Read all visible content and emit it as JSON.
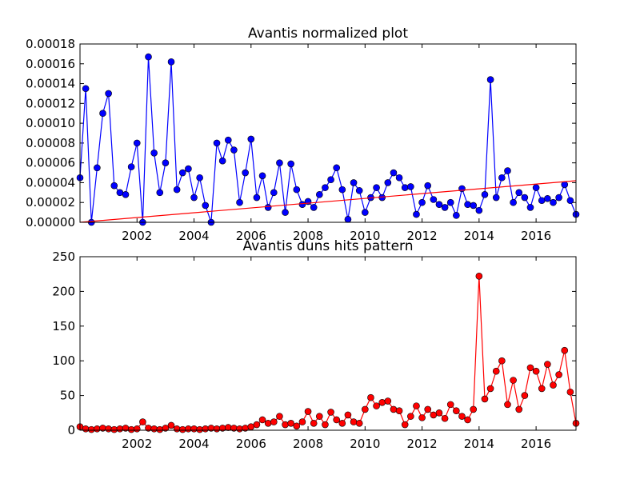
{
  "chart_data": [
    {
      "type": "line",
      "title": "Avantis normalized plot",
      "x": [
        2000,
        2000.2,
        2000.4,
        2000.6,
        2000.8,
        2001,
        2001.2,
        2001.4,
        2001.6,
        2001.8,
        2002,
        2002.2,
        2002.4,
        2002.6,
        2002.8,
        2003,
        2003.2,
        2003.4,
        2003.6,
        2003.8,
        2004,
        2004.2,
        2004.4,
        2004.6,
        2004.8,
        2005,
        2005.2,
        2005.4,
        2005.6,
        2005.8,
        2006,
        2006.2,
        2006.4,
        2006.6,
        2006.8,
        2007,
        2007.2,
        2007.4,
        2007.6,
        2007.8,
        2008,
        2008.2,
        2008.4,
        2008.6,
        2008.8,
        2009,
        2009.2,
        2009.4,
        2009.6,
        2009.8,
        2010,
        2010.2,
        2010.4,
        2010.6,
        2010.8,
        2011,
        2011.2,
        2011.4,
        2011.6,
        2011.8,
        2012,
        2012.2,
        2012.4,
        2012.6,
        2012.8,
        2013,
        2013.2,
        2013.4,
        2013.6,
        2013.8,
        2014,
        2014.2,
        2014.4,
        2014.6,
        2014.8,
        2015,
        2015.2,
        2015.4,
        2015.6,
        2015.8,
        2016,
        2016.2,
        2016.4,
        2016.6,
        2016.8,
        2017,
        2017.2,
        2017.4
      ],
      "series": [
        {
          "color": "#0000ff",
          "values": [
            4.5e-05,
            0.000135,
            0,
            5.5e-05,
            0.00011,
            0.00013,
            3.7e-05,
            3e-05,
            2.8e-05,
            5.6e-05,
            8e-05,
            0,
            0.000167,
            7e-05,
            3e-05,
            6e-05,
            0.000162,
            3.3e-05,
            5e-05,
            5.4e-05,
            2.5e-05,
            4.5e-05,
            1.7e-05,
            0,
            8e-05,
            6.2e-05,
            8.3e-05,
            7.3e-05,
            2e-05,
            5e-05,
            8.4e-05,
            2.5e-05,
            4.7e-05,
            1.5e-05,
            3e-05,
            6e-05,
            1e-05,
            5.9e-05,
            3.3e-05,
            1.8e-05,
            2.1e-05,
            1.5e-05,
            2.8e-05,
            3.5e-05,
            4.3e-05,
            5.5e-05,
            3.3e-05,
            3e-06,
            4e-05,
            3.2e-05,
            1e-05,
            2.5e-05,
            3.5e-05,
            2.5e-05,
            4e-05,
            5e-05,
            4.5e-05,
            3.5e-05,
            3.6e-05,
            8e-06,
            2e-05,
            3.7e-05,
            2.3e-05,
            1.8e-05,
            1.5e-05,
            2e-05,
            7e-06,
            3.4e-05,
            1.8e-05,
            1.7e-05,
            1.2e-05,
            2.8e-05,
            0.000144,
            2.5e-05,
            4.5e-05,
            5.2e-05,
            2e-05,
            3e-05,
            2.5e-05,
            1.5e-05,
            3.5e-05,
            2.2e-05,
            2.4e-05,
            2e-05,
            2.5e-05,
            3.8e-05,
            2.2e-05,
            8e-06
          ]
        }
      ],
      "trend_line": {
        "x": [
          2000,
          2017.4
        ],
        "y": [
          0,
          4.2e-05
        ],
        "color": "#ff0000"
      },
      "xlim": [
        2000,
        2017.4
      ],
      "xticks": [
        2002,
        2004,
        2006,
        2008,
        2010,
        2012,
        2014,
        2016
      ],
      "ylim": [
        0,
        0.00018
      ],
      "yticks": [
        {
          "value": 0,
          "label": "0.00000"
        },
        {
          "value": 2e-05,
          "label": "0.00002"
        },
        {
          "value": 4e-05,
          "label": "0.00004"
        },
        {
          "value": 6e-05,
          "label": "0.00006"
        },
        {
          "value": 8e-05,
          "label": "0.00008"
        },
        {
          "value": 0.0001,
          "label": "0.00010"
        },
        {
          "value": 0.00012,
          "label": "0.00012"
        },
        {
          "value": 0.00014,
          "label": "0.00014"
        },
        {
          "value": 0.00016,
          "label": "0.00016"
        },
        {
          "value": 0.00018,
          "label": "0.00018"
        }
      ]
    },
    {
      "type": "line",
      "title": "Avantis duns hits pattern",
      "x": [
        2000,
        2000.2,
        2000.4,
        2000.6,
        2000.8,
        2001,
        2001.2,
        2001.4,
        2001.6,
        2001.8,
        2002,
        2002.2,
        2002.4,
        2002.6,
        2002.8,
        2003,
        2003.2,
        2003.4,
        2003.6,
        2003.8,
        2004,
        2004.2,
        2004.4,
        2004.6,
        2004.8,
        2005,
        2005.2,
        2005.4,
        2005.6,
        2005.8,
        2006,
        2006.2,
        2006.4,
        2006.6,
        2006.8,
        2007,
        2007.2,
        2007.4,
        2007.6,
        2007.8,
        2008,
        2008.2,
        2008.4,
        2008.6,
        2008.8,
        2009,
        2009.2,
        2009.4,
        2009.6,
        2009.8,
        2010,
        2010.2,
        2010.4,
        2010.6,
        2010.8,
        2011,
        2011.2,
        2011.4,
        2011.6,
        2011.8,
        2012,
        2012.2,
        2012.4,
        2012.6,
        2012.8,
        2013,
        2013.2,
        2013.4,
        2013.6,
        2013.8,
        2014,
        2014.2,
        2014.4,
        2014.6,
        2014.8,
        2015,
        2015.2,
        2015.4,
        2015.6,
        2015.8,
        2016,
        2016.2,
        2016.4,
        2016.6,
        2016.8,
        2017,
        2017.2,
        2017.4
      ],
      "series": [
        {
          "color": "#ff0000",
          "values": [
            5,
            2,
            1,
            2,
            3,
            2,
            1,
            2,
            3,
            1,
            2,
            12,
            3,
            2,
            1,
            3,
            7,
            2,
            1,
            2,
            2,
            1,
            2,
            3,
            2,
            3,
            4,
            3,
            2,
            3,
            5,
            8,
            15,
            10,
            12,
            20,
            8,
            10,
            6,
            12,
            27,
            10,
            20,
            8,
            26,
            15,
            10,
            22,
            12,
            10,
            30,
            47,
            35,
            40,
            42,
            30,
            28,
            8,
            20,
            35,
            18,
            30,
            22,
            25,
            17,
            37,
            28,
            20,
            15,
            30,
            222,
            45,
            60,
            85,
            100,
            37,
            72,
            30,
            50,
            90,
            85,
            60,
            95,
            65,
            80,
            115,
            55,
            10
          ]
        }
      ],
      "xlim": [
        2000,
        2017.4
      ],
      "xticks": [
        2002,
        2004,
        2006,
        2008,
        2010,
        2012,
        2014,
        2016
      ],
      "ylim": [
        0,
        250
      ],
      "yticks": [
        0,
        50,
        100,
        150,
        200,
        250
      ]
    }
  ]
}
